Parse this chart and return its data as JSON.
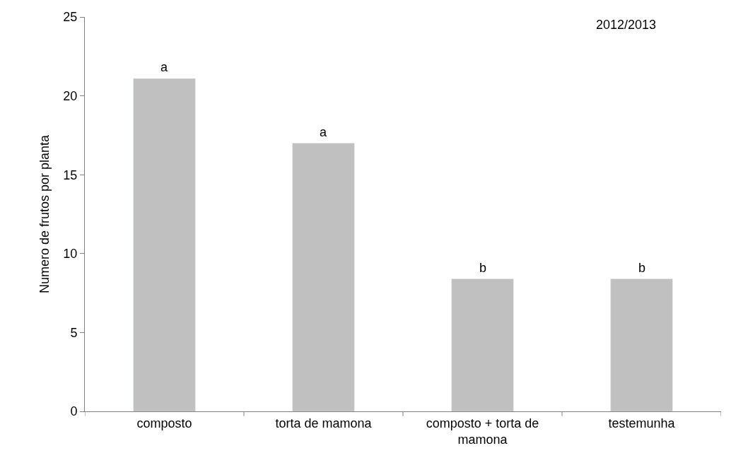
{
  "chart_data": {
    "type": "bar",
    "ylabel": "Numero de frutos por planta",
    "categories": [
      "composto",
      "torta de mamona",
      "composto + torta de mamona",
      "testemunha"
    ],
    "values": [
      21.1,
      17.0,
      8.4,
      8.4
    ],
    "color": "#c0c0c0",
    "ylim": [
      0,
      25
    ],
    "yticks": [
      0,
      5,
      10,
      15,
      20,
      25
    ],
    "grid": false,
    "annotations": [
      "2012/2013",
      {
        "text": "a",
        "x": "composto",
        "y": 21.1
      },
      {
        "text": "a",
        "x": "torta de mamona",
        "y": 17.0
      },
      {
        "text": "b",
        "x": "composto + torta de mamona",
        "y": 8.4
      },
      {
        "text": "b",
        "x": "testemunha",
        "y": 8.4
      }
    ]
  }
}
